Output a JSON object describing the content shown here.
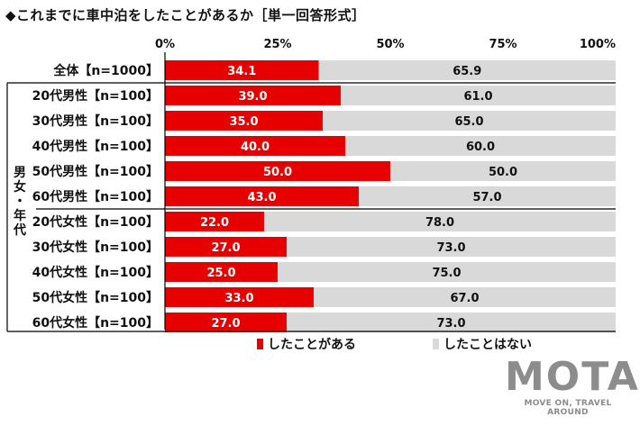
{
  "title": "◆これまでに車中泊をしたことがあるか［単一回答形式］",
  "group_label": "男女・年代",
  "colors": {
    "yes": "#e60000",
    "no": "#d9d9d9",
    "separator": "#000000"
  },
  "logo": {
    "mark": "MOTA",
    "tagline": "MOVE ON, TRAVEL AROUND"
  },
  "chart_data": {
    "type": "bar",
    "orientation": "horizontal",
    "stacked": true,
    "xlim": [
      0,
      100
    ],
    "x_ticks": [
      "0%",
      "25%",
      "50%",
      "75%",
      "100%"
    ],
    "categories": [
      "全体【n=1000】",
      "20代男性【n=100】",
      "30代男性【n=100】",
      "40代男性【n=100】",
      "50代男性【n=100】",
      "60代男性【n=100】",
      "20代女性【n=100】",
      "30代女性【n=100】",
      "40代女性【n=100】",
      "50代女性【n=100】",
      "60代女性【n=100】"
    ],
    "series": [
      {
        "name": "したことがある",
        "values": [
          34.1,
          39.0,
          35.0,
          40.0,
          50.0,
          43.0,
          22.0,
          27.0,
          25.0,
          33.0,
          27.0
        ]
      },
      {
        "name": "したことはない",
        "values": [
          65.9,
          61.0,
          65.0,
          60.0,
          50.0,
          57.0,
          78.0,
          73.0,
          75.0,
          67.0,
          73.0
        ]
      }
    ],
    "value_labels": [
      [
        "34.1",
        "39.0",
        "35.0",
        "40.0",
        "50.0",
        "43.0",
        "22.0",
        "27.0",
        "25.0",
        "33.0",
        "27.0"
      ],
      [
        "65.9",
        "61.0",
        "65.0",
        "60.0",
        "50.0",
        "57.0",
        "78.0",
        "73.0",
        "75.0",
        "67.0",
        "73.0"
      ]
    ],
    "legend_position": "bottom"
  }
}
